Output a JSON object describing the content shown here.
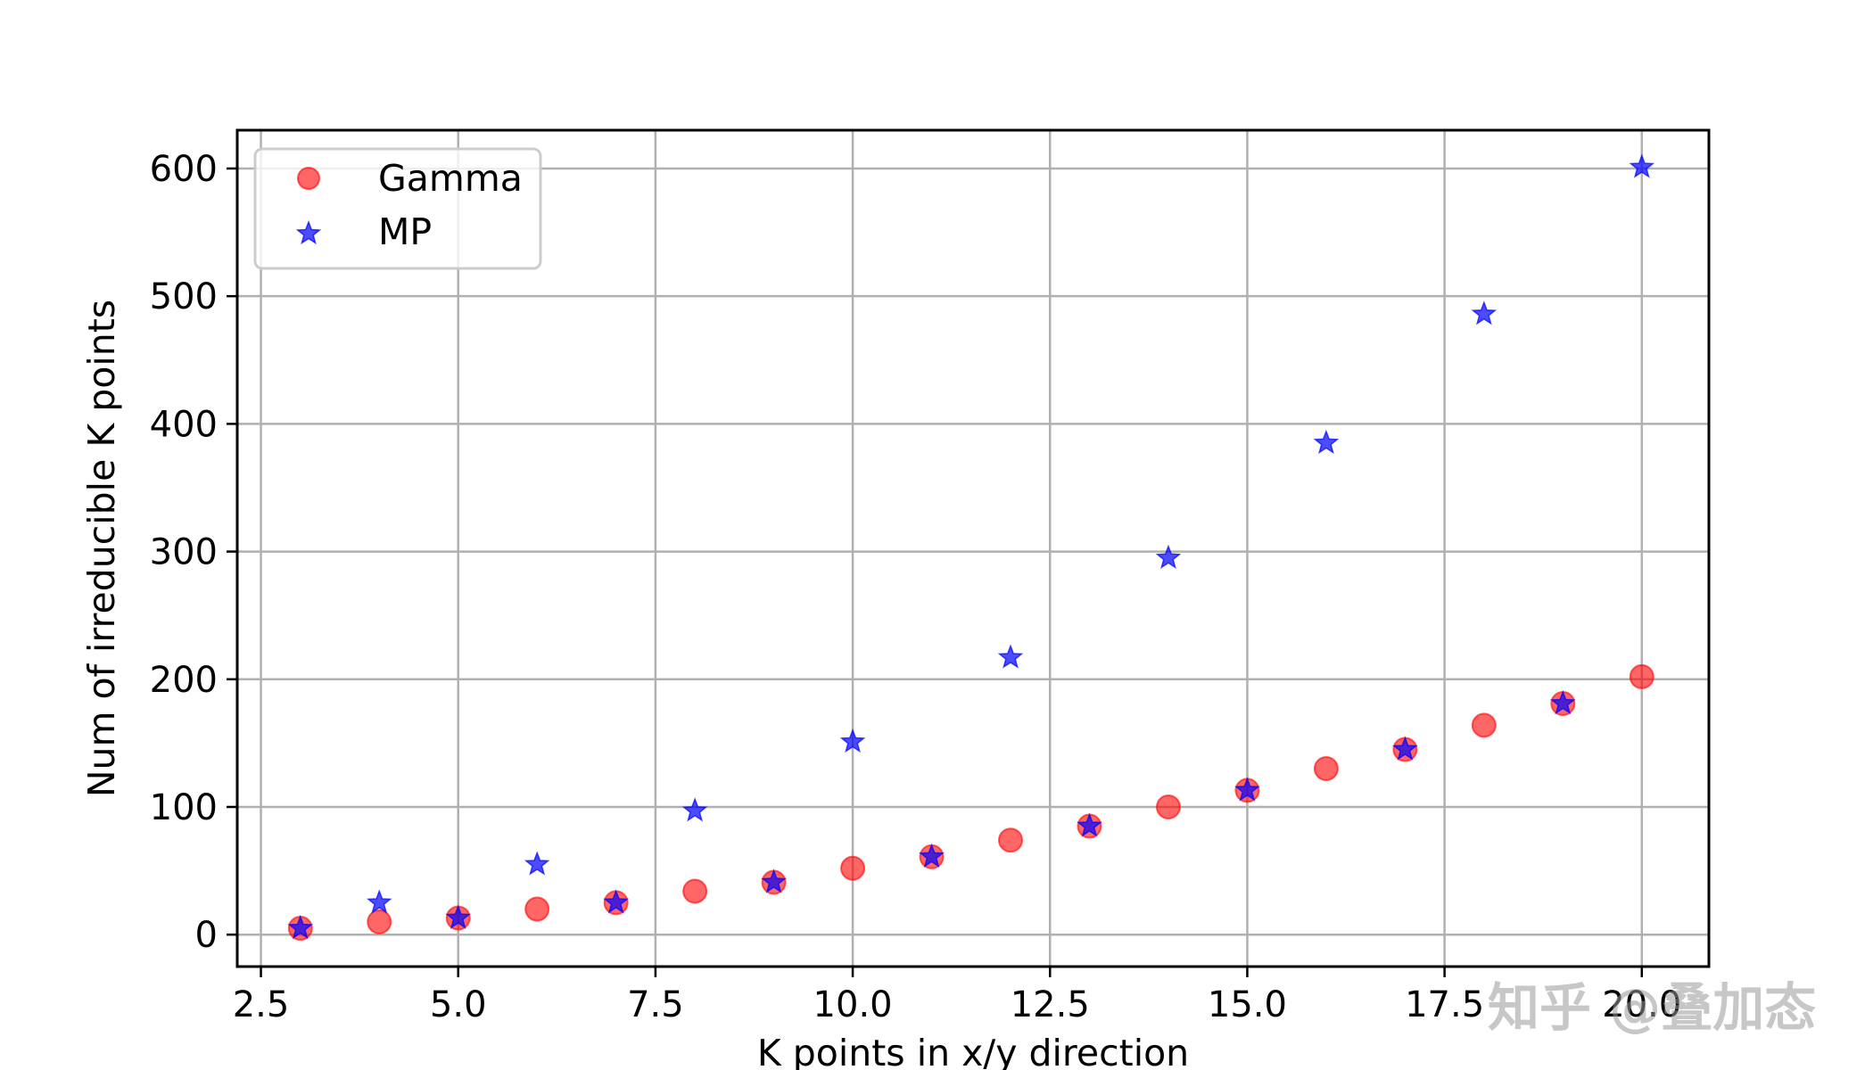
{
  "chart_data": {
    "type": "scatter",
    "title": "",
    "xlabel": "K points in x/y direction",
    "ylabel": "Num of irreducible K points",
    "xlim": [
      2.2,
      20.85
    ],
    "ylim": [
      -25,
      630
    ],
    "xticks": [
      2.5,
      5.0,
      7.5,
      10.0,
      12.5,
      15.0,
      17.5,
      20.0
    ],
    "xtick_labels": [
      "2.5",
      "5.0",
      "7.5",
      "10.0",
      "12.5",
      "15.0",
      "17.5",
      "20.0"
    ],
    "yticks": [
      0,
      100,
      200,
      300,
      400,
      500,
      600
    ],
    "ytick_labels": [
      "0",
      "100",
      "200",
      "300",
      "400",
      "500",
      "600"
    ],
    "grid": true,
    "legend_position": "top-left",
    "series": [
      {
        "name": "Gamma",
        "marker": "circle",
        "color": "#ff0000",
        "x": [
          3,
          4,
          5,
          6,
          7,
          8,
          9,
          10,
          11,
          12,
          13,
          14,
          15,
          16,
          17,
          18,
          19,
          20
        ],
        "y": [
          5,
          10,
          13,
          20,
          25,
          34,
          41,
          52,
          61,
          74,
          85,
          100,
          113,
          130,
          145,
          164,
          181,
          202
        ]
      },
      {
        "name": "MP",
        "marker": "star",
        "color": "#0000ff",
        "x": [
          3,
          4,
          5,
          6,
          7,
          8,
          9,
          10,
          11,
          12,
          13,
          14,
          15,
          16,
          17,
          18,
          19,
          20
        ],
        "y": [
          5,
          25,
          13,
          55,
          25,
          97,
          41,
          151,
          61,
          217,
          85,
          295,
          113,
          385,
          145,
          486,
          181,
          601
        ]
      }
    ]
  },
  "watermark": "知乎 @叠加态"
}
